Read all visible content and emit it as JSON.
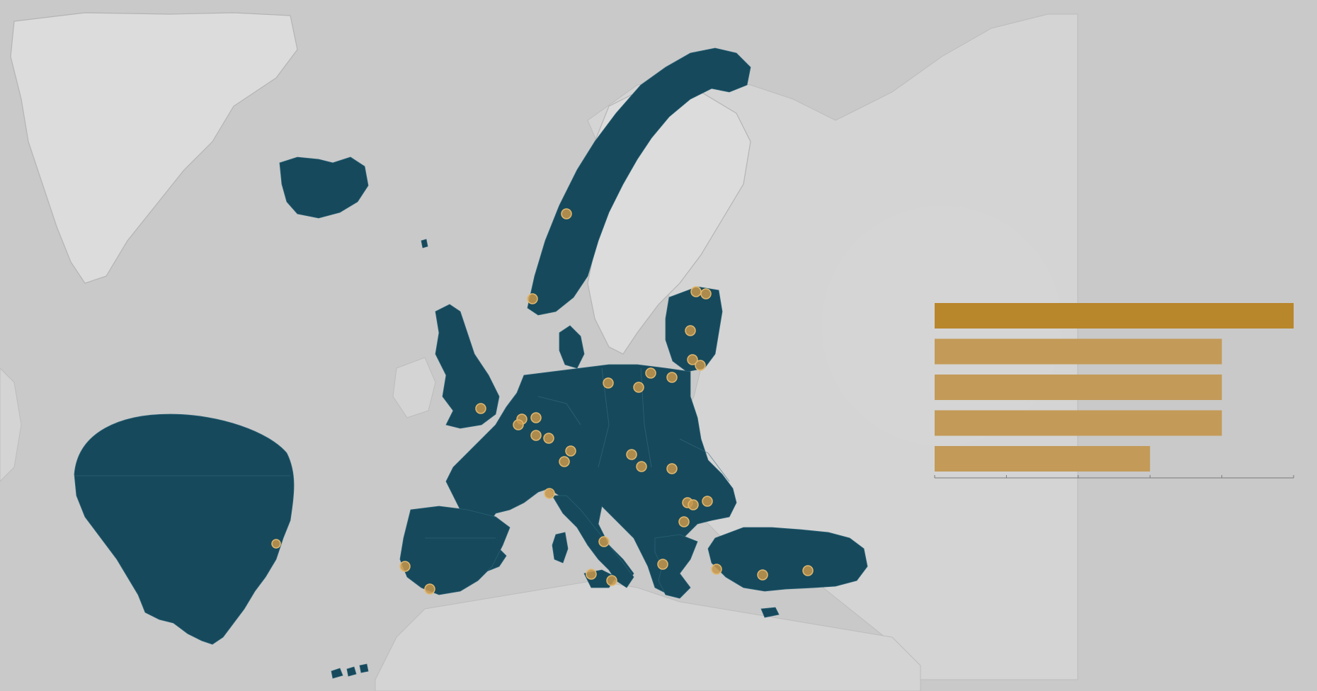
{
  "colors": {
    "background": "#c9c9c9",
    "member_fill": "#16495c",
    "site_marker": "#c8974a",
    "bar_highlight": "#b8862b",
    "bar_default": "#c39a58"
  },
  "chart_data": {
    "type": "bar",
    "orientation": "horizontal",
    "categories": [
      "",
      "",
      "",
      "",
      ""
    ],
    "values": [
      5,
      4,
      4,
      4,
      3
    ],
    "xlim": [
      0,
      5
    ],
    "highlight_index": 0,
    "grid": false,
    "ticks": [
      0,
      1,
      2,
      3,
      4,
      5
    ]
  }
}
